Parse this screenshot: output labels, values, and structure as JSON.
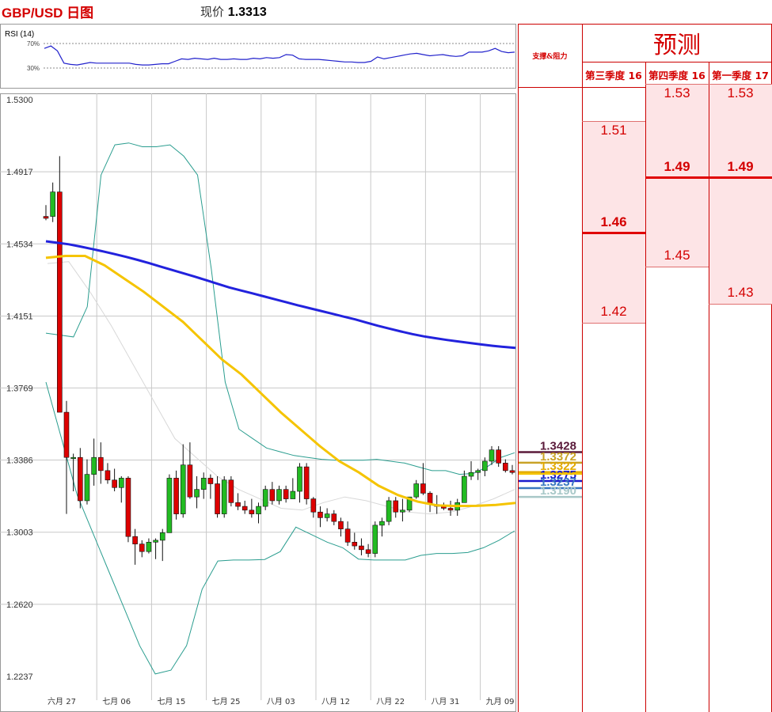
{
  "header": {
    "title": "GBP/USD 日图",
    "price_label": "现价",
    "price_value": "1.3313"
  },
  "rsi": {
    "label": "RSI (14)",
    "levels": [
      "70%",
      "30%"
    ],
    "values": [
      62,
      66,
      58,
      38,
      36,
      35,
      37,
      39,
      38,
      38,
      38,
      38,
      38,
      38,
      36,
      35,
      35,
      36,
      37,
      37,
      41,
      45,
      44,
      46,
      45,
      44,
      46,
      44,
      44,
      45,
      44,
      44,
      46,
      45,
      47,
      46,
      47,
      52,
      51,
      45,
      44,
      44,
      44,
      43,
      42,
      41,
      40,
      40,
      39,
      39,
      41,
      48,
      45,
      47,
      49,
      51,
      53,
      54,
      52,
      50,
      51,
      52,
      50,
      49,
      50,
      56,
      56,
      56,
      58,
      62,
      57,
      55,
      56
    ]
  },
  "chart_data": {
    "type": "candlestick",
    "y_ticks": [
      "1.5300",
      "1.4917",
      "1.4534",
      "1.4151",
      "1.3769",
      "1.3386",
      "1.3003",
      "1.2620",
      "1.2237"
    ],
    "ylim": [
      1.2237,
      1.53
    ],
    "x_ticks": [
      "六月 27",
      "七月 06",
      "七月 15",
      "七月 25",
      "八月 03",
      "八月 12",
      "八月 22",
      "八月 31",
      "九月 09"
    ],
    "colors": {
      "up": "#22bb22",
      "down": "#dd0000",
      "ma200": "#2222dd",
      "ma50": "#f5c400",
      "bollinger": "#2a9d8f",
      "ma_thin": "#d8d8d8",
      "grid": "#c8c8c8"
    },
    "candles": [
      [
        1.468,
        1.474,
        1.466,
        1.467
      ],
      [
        1.468,
        1.486,
        1.465,
        1.481
      ],
      [
        1.481,
        1.5,
        1.367,
        1.364
      ],
      [
        1.364,
        1.37,
        1.31,
        1.34
      ],
      [
        1.34,
        1.342,
        1.322,
        1.34
      ],
      [
        1.34,
        1.345,
        1.313,
        1.317
      ],
      [
        1.317,
        1.339,
        1.315,
        1.331
      ],
      [
        1.331,
        1.35,
        1.325,
        1.34
      ],
      [
        1.34,
        1.348,
        1.326,
        1.333
      ],
      [
        1.333,
        1.337,
        1.326,
        1.328
      ],
      [
        1.328,
        1.334,
        1.322,
        1.324
      ],
      [
        1.324,
        1.33,
        1.316,
        1.329
      ],
      [
        1.329,
        1.33,
        1.295,
        1.298
      ],
      [
        1.298,
        1.302,
        1.283,
        1.294
      ],
      [
        1.294,
        1.296,
        1.287,
        1.29
      ],
      [
        1.29,
        1.297,
        1.289,
        1.295
      ],
      [
        1.295,
        1.297,
        1.286,
        1.296
      ],
      [
        1.296,
        1.302,
        1.285,
        1.3
      ],
      [
        1.3,
        1.331,
        1.3,
        1.329
      ],
      [
        1.329,
        1.333,
        1.307,
        1.31
      ],
      [
        1.31,
        1.347,
        1.308,
        1.336
      ],
      [
        1.336,
        1.348,
        1.318,
        1.319
      ],
      [
        1.319,
        1.33,
        1.313,
        1.323
      ],
      [
        1.323,
        1.332,
        1.318,
        1.329
      ],
      [
        1.329,
        1.331,
        1.318,
        1.326
      ],
      [
        1.326,
        1.33,
        1.308,
        1.31
      ],
      [
        1.31,
        1.33,
        1.308,
        1.328
      ],
      [
        1.328,
        1.33,
        1.314,
        1.316
      ],
      [
        1.316,
        1.321,
        1.312,
        1.314
      ],
      [
        1.314,
        1.317,
        1.31,
        1.312
      ],
      [
        1.312,
        1.318,
        1.308,
        1.31
      ],
      [
        1.31,
        1.316,
        1.305,
        1.314
      ],
      [
        1.314,
        1.325,
        1.312,
        1.323
      ],
      [
        1.323,
        1.327,
        1.315,
        1.317
      ],
      [
        1.317,
        1.325,
        1.315,
        1.323
      ],
      [
        1.323,
        1.325,
        1.316,
        1.318
      ],
      [
        1.318,
        1.329,
        1.318,
        1.322
      ],
      [
        1.322,
        1.337,
        1.316,
        1.335
      ],
      [
        1.335,
        1.337,
        1.315,
        1.318
      ],
      [
        1.318,
        1.319,
        1.308,
        1.311
      ],
      [
        1.311,
        1.314,
        1.303,
        1.308
      ],
      [
        1.308,
        1.313,
        1.306,
        1.31
      ],
      [
        1.31,
        1.312,
        1.304,
        1.306
      ],
      [
        1.306,
        1.308,
        1.298,
        1.302
      ],
      [
        1.302,
        1.306,
        1.293,
        1.295
      ],
      [
        1.295,
        1.3,
        1.291,
        1.293
      ],
      [
        1.293,
        1.297,
        1.288,
        1.291
      ],
      [
        1.291,
        1.294,
        1.287,
        1.289
      ],
      [
        1.289,
        1.306,
        1.287,
        1.304
      ],
      [
        1.304,
        1.308,
        1.298,
        1.306
      ],
      [
        1.306,
        1.319,
        1.304,
        1.317
      ],
      [
        1.317,
        1.319,
        1.308,
        1.311
      ],
      [
        1.311,
        1.318,
        1.306,
        1.312
      ],
      [
        1.312,
        1.319,
        1.311,
        1.319
      ],
      [
        1.319,
        1.328,
        1.318,
        1.326
      ],
      [
        1.326,
        1.337,
        1.32,
        1.321
      ],
      [
        1.321,
        1.322,
        1.311,
        1.315
      ],
      [
        1.315,
        1.32,
        1.31,
        1.314
      ],
      [
        1.314,
        1.316,
        1.312,
        1.313
      ],
      [
        1.313,
        1.317,
        1.309,
        1.312
      ],
      [
        1.312,
        1.318,
        1.309,
        1.316
      ],
      [
        1.316,
        1.333,
        1.316,
        1.33
      ],
      [
        1.33,
        1.338,
        1.328,
        1.332
      ],
      [
        1.332,
        1.334,
        1.328,
        1.333
      ],
      [
        1.333,
        1.34,
        1.33,
        1.338
      ],
      [
        1.338,
        1.346,
        1.336,
        1.344
      ],
      [
        1.344,
        1.346,
        1.335,
        1.337
      ],
      [
        1.337,
        1.339,
        1.332,
        1.333
      ],
      [
        1.333,
        1.336,
        1.331,
        1.332
      ]
    ],
    "ma200": [
      1.4548,
      1.454,
      1.4532,
      1.452,
      1.4507,
      1.4494,
      1.448,
      1.4465,
      1.4449,
      1.4432,
      1.4414,
      1.4396,
      1.4378,
      1.436,
      1.4341,
      1.4322,
      1.4303,
      1.4287,
      1.4272,
      1.4256,
      1.424,
      1.4224,
      1.4208,
      1.4193,
      1.4178,
      1.4163,
      1.4148,
      1.4133,
      1.4116,
      1.4099,
      1.4084,
      1.4069,
      1.4055,
      1.4043,
      1.4033,
      1.4024,
      1.4016,
      1.4008,
      1.4,
      1.3993,
      1.3987,
      1.3982
    ],
    "ma50": [
      1.446,
      1.447,
      1.447,
      1.442,
      1.435,
      1.428,
      1.42,
      1.412,
      1.402,
      1.392,
      1.384,
      1.374,
      1.364,
      1.355,
      1.346,
      1.338,
      1.332,
      1.325,
      1.32,
      1.3165,
      1.3145,
      1.3142,
      1.3143,
      1.3148,
      1.3158
    ],
    "ma_thin": [
      1.443,
      1.444,
      1.428,
      1.41,
      1.39,
      1.37,
      1.35,
      1.34,
      1.33,
      1.323,
      1.318,
      1.313,
      1.312,
      1.316,
      1.319,
      1.317,
      1.314,
      1.311,
      1.31,
      1.311,
      1.314,
      1.318,
      1.323
    ],
    "bb_upper": [
      1.406,
      1.405,
      1.404,
      1.42,
      1.49,
      1.506,
      1.507,
      1.505,
      1.505,
      1.506,
      1.5,
      1.49,
      1.44,
      1.38,
      1.355,
      1.35,
      1.345,
      1.343,
      1.341,
      1.34,
      1.339,
      1.3385,
      1.3385,
      1.3385,
      1.339,
      1.338,
      1.337,
      1.335,
      1.333,
      1.333,
      1.331,
      1.3315,
      1.335,
      1.34,
      1.3425
    ],
    "bb_lower": [
      1.38,
      1.35,
      1.32,
      1.3,
      1.28,
      1.26,
      1.24,
      1.225,
      1.227,
      1.24,
      1.27,
      1.285,
      1.2855,
      1.2855,
      1.2858,
      1.29,
      1.303,
      1.299,
      1.295,
      1.292,
      1.286,
      1.2855,
      1.2855,
      1.2855,
      1.288,
      1.289,
      1.289,
      1.2895,
      1.292,
      1.296,
      1.301
    ],
    "support_resistance": {
      "title": "支撑&阻力",
      "levels": [
        {
          "value": "1.3428",
          "color": "#5a1a3a"
        },
        {
          "value": "1.3372",
          "color": "#c9a227"
        },
        {
          "value": "1.3322",
          "color": "#e0a800"
        },
        {
          "value": "1.3275",
          "color": "#1a1acc"
        },
        {
          "value": "1.3237",
          "color": "#3a78c0"
        },
        {
          "value": "1.3190",
          "color": "#a8c8c8"
        }
      ],
      "current_price_line": 1.3313
    },
    "forecast": {
      "title": "预测",
      "quarters": [
        {
          "label": "第三季度 16",
          "high": "1.51",
          "mid": "1.46",
          "low": "1.42"
        },
        {
          "label": "第四季度 16",
          "high": "1.53",
          "mid": "1.49",
          "low": "1.45"
        },
        {
          "label": "第一季度 17",
          "high": "1.53",
          "mid": "1.49",
          "low": "1.43"
        }
      ]
    }
  }
}
